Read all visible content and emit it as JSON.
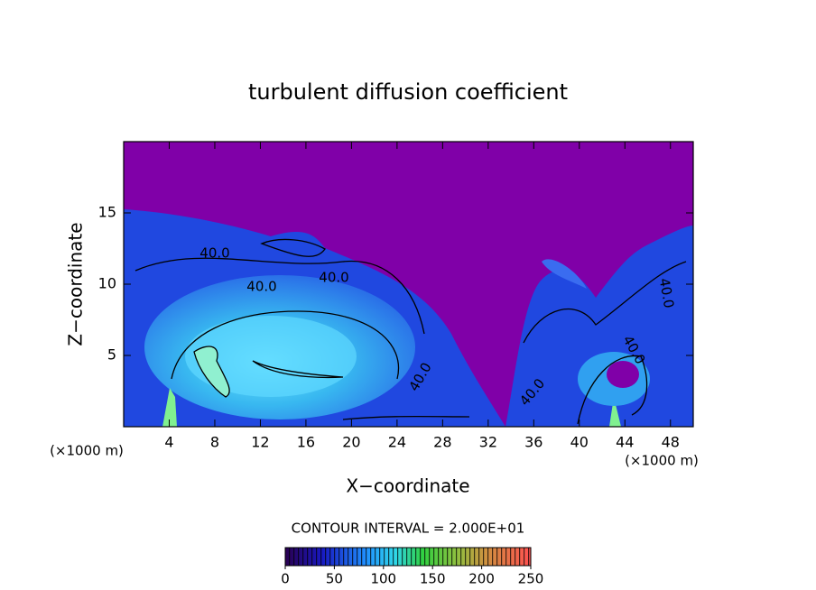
{
  "chart_data": {
    "type": "contour",
    "title": "turbulent diffusion coefficient",
    "xlabel": "X−coordinate",
    "ylabel": "Z−coordinate",
    "x_unit_label": "(×1000 m)",
    "xlim": [
      0,
      50
    ],
    "xticks": [
      4,
      8,
      12,
      16,
      20,
      24,
      28,
      32,
      36,
      40,
      44,
      48
    ],
    "ylim": [
      0,
      20
    ],
    "yticks": [
      5,
      10,
      15
    ],
    "contour_labels": [
      "40.0",
      "40.0",
      "40.0",
      "40.0",
      "40.0",
      "40.0",
      "40.0"
    ],
    "contour_interval": "CONTOUR INTERVAL = 2.000E+01",
    "colorbar": {
      "lim": [
        0,
        250
      ],
      "ticks": [
        0,
        50,
        100,
        150,
        200,
        250
      ]
    }
  }
}
